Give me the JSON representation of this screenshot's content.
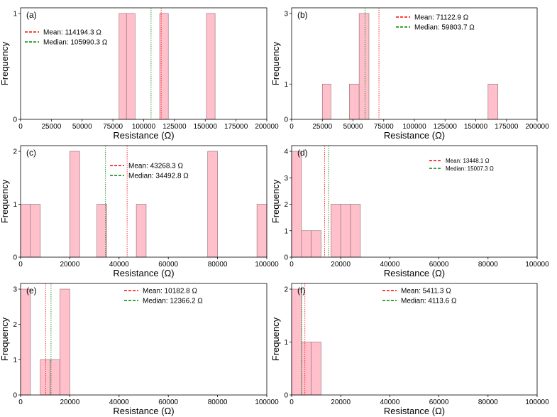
{
  "colors": {
    "bar_fill": "#ffc0cb",
    "bar_stroke": "#8a6b70",
    "mean": "#ff0000",
    "median": "#008000"
  },
  "chart_data": [
    {
      "type": "bar",
      "panel": "(a)",
      "bins": [
        [
          80000,
          86000,
          1
        ],
        [
          86000,
          93000,
          1
        ],
        [
          113000,
          120000,
          1
        ],
        [
          151000,
          158000,
          1
        ]
      ],
      "mean": 114194.3,
      "median": 105990.3,
      "legend": [
        "Mean: 114194.3 Ω",
        "Median: 105990.3 Ω"
      ],
      "legend_position": "upper-left",
      "xlim": [
        0,
        200000
      ],
      "ylim": [
        0,
        1.0
      ],
      "xticks": [
        0,
        25000,
        50000,
        75000,
        100000,
        125000,
        150000,
        175000,
        200000
      ],
      "yticks": [
        0,
        1
      ],
      "xlabel": "Resistance (Ω)",
      "ylabel": "Frequency"
    },
    {
      "type": "bar",
      "panel": "(b)",
      "bins": [
        [
          25000,
          32000,
          1
        ],
        [
          47000,
          55000,
          1
        ],
        [
          55000,
          63000,
          3
        ],
        [
          160000,
          168000,
          1
        ]
      ],
      "mean": 71122.9,
      "median": 59803.7,
      "legend": [
        "Mean: 71122.9 Ω",
        "Median: 59803.7 Ω"
      ],
      "legend_position": "upper-right",
      "xlim": [
        0,
        200000
      ],
      "ylim": [
        0,
        3.0
      ],
      "xticks": [
        0,
        25000,
        50000,
        75000,
        100000,
        125000,
        150000,
        175000,
        200000
      ],
      "yticks": [
        0,
        1,
        3
      ],
      "xlabel": "Resistance (Ω)",
      "ylabel": "Frequency"
    },
    {
      "type": "bar",
      "panel": "(c)",
      "bins": [
        [
          0,
          4000,
          1
        ],
        [
          4000,
          8000,
          1
        ],
        [
          20000,
          24000,
          2
        ],
        [
          31000,
          35000,
          1
        ],
        [
          47000,
          51000,
          1
        ],
        [
          76000,
          80000,
          2
        ],
        [
          96000,
          100000,
          1
        ]
      ],
      "mean": 43268.3,
      "median": 34492.8,
      "legend": [
        "Mean: 43268.3 Ω",
        "Median: 34492.8 Ω"
      ],
      "legend_position": "upper-center",
      "xlim": [
        0,
        100000
      ],
      "ylim": [
        0,
        2.0
      ],
      "xticks": [
        0,
        20000,
        40000,
        60000,
        80000,
        100000
      ],
      "yticks": [
        0,
        1,
        2
      ],
      "xlabel": "Resistance (Ω)",
      "ylabel": "Frequency"
    },
    {
      "type": "bar",
      "panel": "(d)",
      "bins": [
        [
          0,
          4000,
          4
        ],
        [
          4000,
          8000,
          1
        ],
        [
          8000,
          12000,
          1
        ],
        [
          16000,
          20000,
          2
        ],
        [
          20000,
          24000,
          2
        ],
        [
          24000,
          28000,
          2
        ]
      ],
      "mean": 13448.1,
      "median": 15007.3,
      "legend": [
        "Mean: 13448.1 Ω",
        "Median: 15007.3 Ω"
      ],
      "legend_position": "upper-right",
      "xlim": [
        0,
        100000
      ],
      "ylim": [
        0,
        4.0
      ],
      "xticks": [
        0,
        20000,
        40000,
        60000,
        80000,
        100000
      ],
      "yticks": [
        0,
        1,
        2,
        3,
        4
      ],
      "xlabel": "Resistance (Ω)",
      "ylabel": "Frequency"
    },
    {
      "type": "bar",
      "panel": "(e)",
      "bins": [
        [
          0,
          4000,
          3
        ],
        [
          8000,
          12000,
          1
        ],
        [
          12000,
          16000,
          1
        ],
        [
          16000,
          20000,
          3
        ]
      ],
      "mean": 10182.8,
      "median": 12366.2,
      "legend": [
        "Mean: 10182.8 Ω",
        "Median: 12366.2 Ω"
      ],
      "legend_position": "upper-center",
      "xlim": [
        0,
        100000
      ],
      "ylim": [
        0,
        3.0
      ],
      "xticks": [
        0,
        20000,
        40000,
        60000,
        80000,
        100000
      ],
      "yticks": [
        0,
        1,
        2,
        3
      ],
      "xlabel": "Resistance (Ω)",
      "ylabel": "Frequency"
    },
    {
      "type": "bar",
      "panel": "(f)",
      "bins": [
        [
          0,
          4000,
          2
        ],
        [
          4000,
          8000,
          1
        ],
        [
          8000,
          12000,
          1
        ]
      ],
      "mean": 5411.3,
      "median": 4113.6,
      "legend": [
        "Mean: 5411.3 Ω",
        "Median: 4113.6 Ω"
      ],
      "legend_position": "upper-center",
      "xlim": [
        0,
        100000
      ],
      "ylim": [
        0,
        2.0
      ],
      "xticks": [
        0,
        20000,
        40000,
        60000,
        80000,
        100000
      ],
      "yticks": [
        0,
        1,
        2
      ],
      "xlabel": "Resistance (Ω)",
      "ylabel": "Frequency"
    }
  ]
}
